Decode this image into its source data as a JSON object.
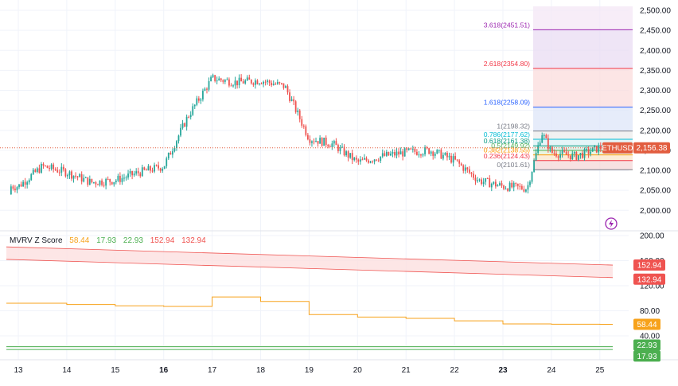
{
  "symbol": "ETHUSD",
  "last_price": "2,156.38",
  "colors": {
    "up": "#26a69a",
    "down": "#ef5350",
    "grid": "#f0f3fa",
    "axis_text": "#131722",
    "mvrv_line": "#f7a21b",
    "upper_band": "#ef5350",
    "lower_band": "#4caf50",
    "price_label": "#e25d3f"
  },
  "price_axis": {
    "ticks": [
      "2,500.00",
      "2,450.00",
      "2,400.00",
      "2,350.00",
      "2,300.00",
      "2,250.00",
      "2,200.00",
      "2,150.00",
      "2,100.00",
      "2,050.00",
      "2,000.00"
    ]
  },
  "indicator_axis": {
    "ticks": [
      "200.00",
      "160.00",
      "120.00",
      "80.00",
      "40.00"
    ]
  },
  "x_axis": {
    "ticks": [
      {
        "label": "13",
        "bold": false
      },
      {
        "label": "14",
        "bold": false
      },
      {
        "label": "15",
        "bold": false
      },
      {
        "label": "16",
        "bold": true
      },
      {
        "label": "17",
        "bold": false
      },
      {
        "label": "18",
        "bold": false
      },
      {
        "label": "19",
        "bold": false
      },
      {
        "label": "20",
        "bold": false
      },
      {
        "label": "21",
        "bold": false
      },
      {
        "label": "22",
        "bold": false
      },
      {
        "label": "23",
        "bold": true
      },
      {
        "label": "24",
        "bold": false
      },
      {
        "label": "25",
        "bold": false
      }
    ]
  },
  "fib_levels": [
    {
      "label": "0(2101.61)",
      "price": 2101.61,
      "color": "#787b86"
    },
    {
      "label": "0.236(2124.43)",
      "price": 2124.43,
      "color": "#f23645"
    },
    {
      "label": "0.382(2138.55)",
      "price": 2138.55,
      "color": "#ff9800"
    },
    {
      "label": "0.5(2149.92)",
      "price": 2149.92,
      "color": "#4caf50"
    },
    {
      "label": "0.618(2161.38)",
      "price": 2161.38,
      "color": "#089981"
    },
    {
      "label": "0.786(2177.62)",
      "price": 2177.62,
      "color": "#00bcd4"
    },
    {
      "label": "1(2198.32)",
      "price": 2198.32,
      "color": "#787b86"
    },
    {
      "label": "1.618(2258.09)",
      "price": 2258.09,
      "color": "#2962ff"
    },
    {
      "label": "2.618(2354.80)",
      "price": 2354.8,
      "color": "#f23645"
    },
    {
      "label": "3.618(2451.51)",
      "price": 2451.51,
      "color": "#9c27b0"
    }
  ],
  "indicator": {
    "name": "MVRV Z Score",
    "values": [
      {
        "text": "58.44",
        "color": "#f7a21b"
      },
      {
        "text": "17.93",
        "color": "#4caf50"
      },
      {
        "text": "22.93",
        "color": "#4caf50"
      },
      {
        "text": "152.94",
        "color": "#ef5350"
      },
      {
        "text": "132.94",
        "color": "#ef5350"
      }
    ],
    "labels": {
      "upper1": "152.94",
      "upper2": "132.94",
      "mvrv": "58.44",
      "lower1": "22.93",
      "lower2": "17.93"
    }
  },
  "chart_data": [
    {
      "type": "candlestick",
      "series_name": "ETHUSD",
      "x_ticks": [
        "13",
        "14",
        "15",
        "16",
        "17",
        "18",
        "19",
        "20",
        "21",
        "22",
        "23",
        "24",
        "25"
      ],
      "ylim": [
        1980,
        2510
      ],
      "approx_close_path": [
        {
          "x": "13",
          "close": 2060
        },
        {
          "x": "13.5",
          "close": 2110
        },
        {
          "x": "14",
          "close": 2095
        },
        {
          "x": "14.5",
          "close": 2070
        },
        {
          "x": "15",
          "close": 2075
        },
        {
          "x": "15.5",
          "close": 2095
        },
        {
          "x": "16",
          "close": 2110
        },
        {
          "x": "16.5",
          "close": 2235
        },
        {
          "x": "17",
          "close": 2330
        },
        {
          "x": "17.5",
          "close": 2320
        },
        {
          "x": "18",
          "close": 2325
        },
        {
          "x": "18.5",
          "close": 2310
        },
        {
          "x": "19",
          "close": 2180
        },
        {
          "x": "19.5",
          "close": 2165
        },
        {
          "x": "20",
          "close": 2120
        },
        {
          "x": "20.5",
          "close": 2135
        },
        {
          "x": "21",
          "close": 2145
        },
        {
          "x": "21.5",
          "close": 2150
        },
        {
          "x": "22",
          "close": 2125
        },
        {
          "x": "22.5",
          "close": 2075
        },
        {
          "x": "23",
          "close": 2060
        },
        {
          "x": "23.5",
          "close": 2055
        },
        {
          "x": "23.8",
          "close": 2195
        },
        {
          "x": "24",
          "close": 2145
        },
        {
          "x": "24.5",
          "close": 2135
        },
        {
          "x": "25",
          "close": 2156.38
        }
      ]
    },
    {
      "type": "line",
      "title": "MVRV Z Score",
      "ylim": [
        0,
        210
      ],
      "series": [
        {
          "name": "58.44",
          "approx_values_by_day": [
            [
              13,
              92
            ],
            [
              14,
              90
            ],
            [
              15,
              88
            ],
            [
              16,
              87
            ],
            [
              17,
              102
            ],
            [
              18,
              95
            ],
            [
              19,
              74
            ],
            [
              20,
              70
            ],
            [
              21,
              68
            ],
            [
              22,
              64
            ],
            [
              23,
              59
            ],
            [
              24,
              58.5
            ],
            [
              25,
              58.44
            ]
          ]
        },
        {
          "name": "152.94",
          "approx_values_by_day": [
            [
              13,
              182
            ],
            [
              25,
              152.94
            ]
          ]
        },
        {
          "name": "132.94",
          "approx_values_by_day": [
            [
              13,
              162
            ],
            [
              25,
              132.94
            ]
          ]
        },
        {
          "name": "22.93",
          "approx_values_by_day": [
            [
              13,
              22.93
            ],
            [
              25,
              22.93
            ]
          ]
        },
        {
          "name": "17.93",
          "approx_values_by_day": [
            [
              13,
              17.93
            ],
            [
              25,
              17.93
            ]
          ]
        }
      ]
    }
  ]
}
